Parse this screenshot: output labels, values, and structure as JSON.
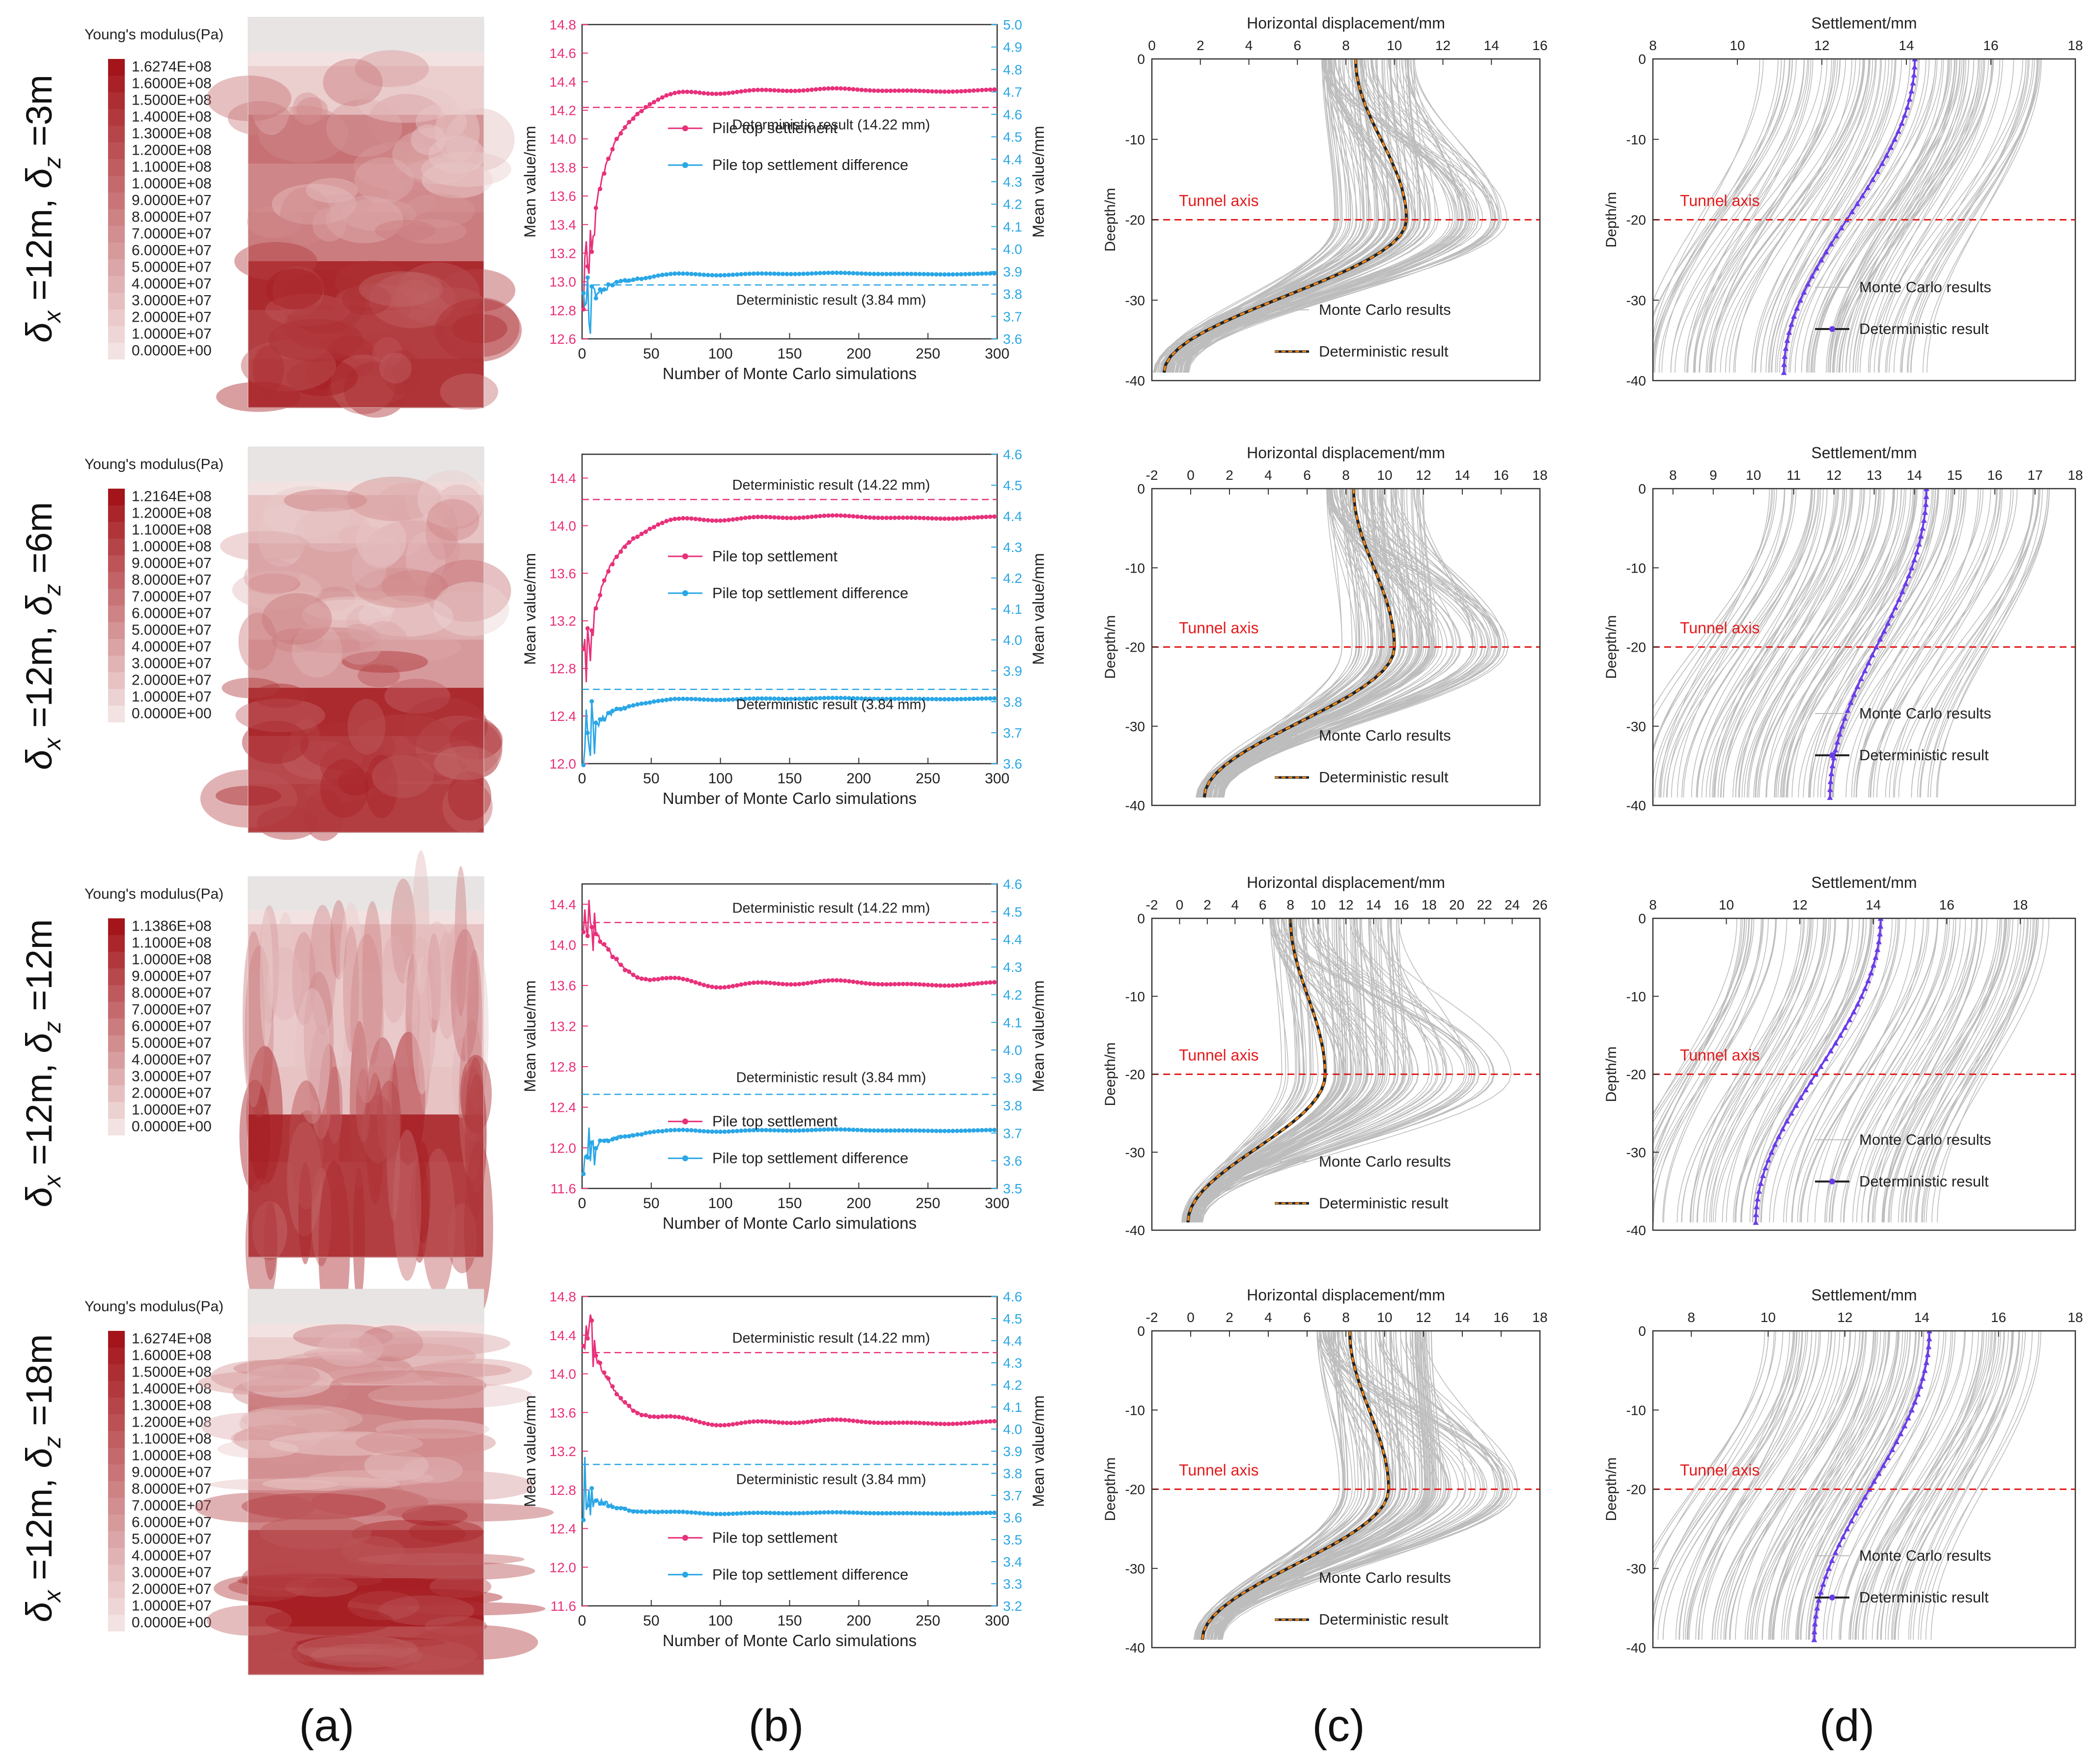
{
  "panel_letters": [
    "(a)",
    "(b)",
    "(c)",
    "(d)"
  ],
  "row_labels": [
    {
      "dx": "12m",
      "dz": "3m"
    },
    {
      "dx": "12m",
      "dz": "6m"
    },
    {
      "dx": "12m",
      "dz": "12m"
    },
    {
      "dx": "12m",
      "dz": "18m"
    }
  ],
  "label_template": {
    "delta": "δ",
    "sub_x": "x",
    "sub_z": "z",
    "eq": " =",
    "sep": ", "
  },
  "colors": {
    "pink": "#e8317a",
    "blue": "#2aa7e6",
    "red": "#e31a1c",
    "grey": "#bdbdbd",
    "orange": "#f28a1a",
    "black": "#222222",
    "purple": "#6a3de8",
    "field_dark": "#a3151a",
    "field_light": "#f3e2e2"
  },
  "chart_data": [
    {
      "type": "heatmap",
      "panel": "a",
      "row": 0,
      "title": "Young's modulus(Pa)",
      "legend": [
        "1.6274E+08",
        "1.6000E+08",
        "1.5000E+08",
        "1.4000E+08",
        "1.3000E+08",
        "1.2000E+08",
        "1.1000E+08",
        "1.0000E+08",
        "9.0000E+07",
        "8.0000E+07",
        "7.0000E+07",
        "6.0000E+07",
        "5.0000E+07",
        "4.0000E+07",
        "3.0000E+07",
        "2.0000E+07",
        "1.0000E+07",
        "0.0000E+00"
      ],
      "bands": [
        0.0,
        0.1,
        0.55,
        0.45,
        0.5,
        0.9,
        0.8,
        0.85
      ],
      "pattern": "blobs"
    },
    {
      "type": "line",
      "panel": "b",
      "row": 0,
      "xlabel": "Number of Monte Carlo simulations",
      "ylabel": "Mean value/mm",
      "y2label": "Mean value/mm",
      "xlim": [
        0,
        300
      ],
      "xticks": [
        "0",
        "50",
        "100",
        "150",
        "200",
        "250",
        "300"
      ],
      "ylim": [
        12.6,
        14.8
      ],
      "yticks": [
        "12.6",
        "12.8",
        "13.0",
        "13.2",
        "13.4",
        "13.6",
        "13.8",
        "14.0",
        "14.2",
        "14.4",
        "14.6",
        "14.8"
      ],
      "y2lim": [
        3.6,
        5.0
      ],
      "y2ticks": [
        "3.6",
        "3.7",
        "3.8",
        "3.9",
        "4.0",
        "4.1",
        "4.2",
        "4.3",
        "4.4",
        "4.5",
        "4.6",
        "4.7",
        "4.8",
        "4.9",
        "5.0"
      ],
      "det1": 14.22,
      "det1_label": "Deterministic result (14.22 mm)",
      "det2": 3.84,
      "det2_label": "Deterministic result (3.84 mm)",
      "series": [
        {
          "name": "Pile top settlement",
          "axis": "left",
          "final": 14.34,
          "start": 12.9,
          "wave": 0.03
        },
        {
          "name": "Pile top settlement difference",
          "axis": "right",
          "final": 3.89,
          "start": 3.7,
          "wave": 0.015
        }
      ],
      "legend": [
        "Pile top settlement",
        "Pile top settlement difference"
      ]
    },
    {
      "type": "line",
      "panel": "c",
      "row": 0,
      "xlabel": "Horizontal displacement/mm",
      "ylabel": "Deepth/m",
      "xlim": [
        0,
        16
      ],
      "xticks": [
        "0",
        "2",
        "4",
        "6",
        "8",
        "10",
        "12",
        "14",
        "16"
      ],
      "ylim": [
        -40,
        0
      ],
      "yticks": [
        "0",
        "-10",
        "-20",
        "-30",
        "-40"
      ],
      "tunnel_axis": -20,
      "tunnel_label": "Tunnel axis",
      "det": {
        "top": 8.4,
        "peak": 10.5,
        "bottom": 0.5
      },
      "mc_spread": {
        "top": [
          7.0,
          11.0
        ],
        "peak": [
          7.5,
          15.0
        ]
      },
      "legend": [
        "Monte Carlo results",
        "Deterministic result"
      ]
    },
    {
      "type": "line",
      "panel": "d",
      "row": 0,
      "xlabel": "Settlement/mm",
      "ylabel": "Depth/m",
      "xlim": [
        8,
        18
      ],
      "xticks": [
        "8",
        "10",
        "12",
        "14",
        "16",
        "18"
      ],
      "ylim": [
        -40,
        0
      ],
      "yticks": [
        "0",
        "-10",
        "-20",
        "-30",
        "-40"
      ],
      "tunnel_axis": -20,
      "tunnel_label": "Tunnel axis",
      "det": {
        "top": 14.2,
        "bottom": 11.1
      },
      "mc_range": [
        8.5,
        17.2
      ],
      "legend": [
        "Monte Carlo results",
        "Deterministic result"
      ]
    },
    {
      "type": "heatmap",
      "panel": "a",
      "row": 1,
      "title": "Young's modulus(Pa)",
      "legend": [
        "1.2164E+08",
        "1.2000E+08",
        "1.1000E+08",
        "1.0000E+08",
        "9.0000E+07",
        "8.0000E+07",
        "7.0000E+07",
        "6.0000E+07",
        "5.0000E+07",
        "4.0000E+07",
        "3.0000E+07",
        "2.0000E+07",
        "1.0000E+07",
        "0.0000E+00"
      ],
      "bands": [
        0.0,
        0.15,
        0.3,
        0.25,
        0.35,
        0.9,
        0.75,
        0.8
      ],
      "pattern": "blobs"
    },
    {
      "type": "line",
      "panel": "b",
      "row": 1,
      "xlabel": "Number of Monte Carlo simulations",
      "ylabel": "Mean value/mm",
      "y2label": "Mean value/mm",
      "xlim": [
        0,
        300
      ],
      "xticks": [
        "0",
        "50",
        "100",
        "150",
        "200",
        "250",
        "300"
      ],
      "ylim": [
        12.0,
        14.6
      ],
      "yticks": [
        "12.0",
        "12.4",
        "12.8",
        "13.2",
        "13.6",
        "14.0",
        "14.4"
      ],
      "y2lim": [
        3.6,
        4.6
      ],
      "y2ticks": [
        "3.6",
        "3.7",
        "3.8",
        "3.9",
        "4.0",
        "4.1",
        "4.2",
        "4.3",
        "4.4",
        "4.5",
        "4.6"
      ],
      "det1": 14.22,
      "det1_label": "Deterministic result (14.22 mm)",
      "det2": 3.84,
      "det2_label": "Deterministic result (3.84 mm)",
      "series": [
        {
          "name": "Pile top settlement",
          "axis": "left",
          "final": 14.07,
          "start": 12.7,
          "wave": 0.03
        },
        {
          "name": "Pile top settlement difference",
          "axis": "right",
          "final": 3.81,
          "start": 3.65,
          "wave": 0.012
        }
      ],
      "legend": [
        "Pile top settlement",
        "Pile top settlement difference"
      ]
    },
    {
      "type": "line",
      "panel": "c",
      "row": 1,
      "xlabel": "Horizontal displacement/mm",
      "ylabel": "Deepth/m",
      "xlim": [
        -2,
        18
      ],
      "xticks": [
        "-2",
        "0",
        "2",
        "4",
        "6",
        "8",
        "10",
        "12",
        "14",
        "16",
        "18"
      ],
      "ylim": [
        -40,
        0
      ],
      "yticks": [
        "0",
        "-10",
        "-20",
        "-30",
        "-40"
      ],
      "tunnel_axis": -20,
      "tunnel_label": "Tunnel axis",
      "det": {
        "top": 8.4,
        "peak": 10.5,
        "bottom": 0.7
      },
      "mc_spread": {
        "top": [
          7.0,
          12.0
        ],
        "peak": [
          7.5,
          16.5
        ]
      },
      "legend": [
        "Monte Carlo results",
        "Deterministic result"
      ]
    },
    {
      "type": "line",
      "panel": "d",
      "row": 1,
      "xlabel": "Settlement/mm",
      "ylabel": "Deepth/m",
      "xlim": [
        7.5,
        18
      ],
      "xticks": [
        "8",
        "9",
        "10",
        "11",
        "12",
        "13",
        "14",
        "15",
        "16",
        "17",
        "18"
      ],
      "ylim": [
        -40,
        0
      ],
      "yticks": [
        "0",
        "-10",
        "-20",
        "-30",
        "-40"
      ],
      "tunnel_axis": -20,
      "tunnel_label": "Tunnel axis",
      "det": {
        "top": 14.3,
        "bottom": 11.9
      },
      "mc_range": [
        8.3,
        17.5
      ],
      "legend": [
        "Monte Carlo results",
        "Deterministic result"
      ]
    },
    {
      "type": "heatmap",
      "panel": "a",
      "row": 2,
      "title": "Young's modulus(Pa)",
      "legend": [
        "1.1386E+08",
        "1.1000E+08",
        "1.0000E+08",
        "9.0000E+07",
        "8.0000E+07",
        "7.0000E+07",
        "6.0000E+07",
        "5.0000E+07",
        "4.0000E+07",
        "3.0000E+07",
        "2.0000E+07",
        "1.0000E+07",
        "0.0000E+00"
      ],
      "bands": [
        0.0,
        0.15,
        0.12,
        0.12,
        0.15,
        0.85,
        0.8,
        0.8
      ],
      "pattern": "vertical"
    },
    {
      "type": "line",
      "panel": "b",
      "row": 2,
      "xlabel": "Number of Monte Carlo simulations",
      "ylabel": "Mean value/mm",
      "y2label": "Mean value/mm",
      "xlim": [
        0,
        300
      ],
      "xticks": [
        "0",
        "50",
        "100",
        "150",
        "200",
        "250",
        "300"
      ],
      "ylim": [
        11.6,
        14.6
      ],
      "yticks": [
        "11.6",
        "12.0",
        "12.4",
        "12.8",
        "13.2",
        "13.6",
        "14.0",
        "14.4"
      ],
      "y2lim": [
        3.5,
        4.6
      ],
      "y2ticks": [
        "3.5",
        "3.6",
        "3.7",
        "3.8",
        "3.9",
        "4.0",
        "4.1",
        "4.2",
        "4.3",
        "4.4",
        "4.5",
        "4.6"
      ],
      "det1": 14.22,
      "det1_label": "Deterministic result (14.22 mm)",
      "det2": 3.84,
      "det2_label": "Deterministic result (3.84 mm)",
      "series": [
        {
          "name": "Pile top settlement",
          "axis": "left",
          "final": 13.62,
          "start": 14.4,
          "wave": 0.05
        },
        {
          "name": "Pile top settlement difference",
          "axis": "right",
          "final": 3.71,
          "start": 3.6,
          "wave": 0.015
        }
      ],
      "legend": [
        "Pile top settlement",
        "Pile top settlement difference"
      ]
    },
    {
      "type": "line",
      "panel": "c",
      "row": 2,
      "xlabel": "Horizontal displacement/mm",
      "ylabel": "Deepth/m",
      "xlim": [
        -2,
        26
      ],
      "xticks": [
        "-2",
        "0",
        "2",
        "4",
        "6",
        "8",
        "10",
        "12",
        "14",
        "16",
        "18",
        "20",
        "22",
        "24",
        "26"
      ],
      "ylim": [
        -40,
        0
      ],
      "yticks": [
        "0",
        "-10",
        "-20",
        "-30",
        "-40"
      ],
      "tunnel_axis": -20,
      "tunnel_label": "Tunnel axis",
      "det": {
        "top": 8.0,
        "peak": 10.5,
        "bottom": 0.6
      },
      "mc_spread": {
        "top": [
          6.5,
          16.0
        ],
        "peak": [
          7.0,
          24.0
        ]
      },
      "legend": [
        "Monte Carlo results",
        "Deterministic result"
      ]
    },
    {
      "type": "line",
      "panel": "d",
      "row": 2,
      "xlabel": "Settlement/mm",
      "ylabel": "Depth/m",
      "xlim": [
        8,
        19.5
      ],
      "xticks": [
        "8",
        "10",
        "12",
        "14",
        "16",
        "18"
      ],
      "ylim": [
        -40,
        0
      ],
      "yticks": [
        "0",
        "-10",
        "-20",
        "-30",
        "-40"
      ],
      "tunnel_axis": -20,
      "tunnel_label": "Tunnel axis",
      "det": {
        "top": 14.2,
        "bottom": 10.8
      },
      "mc_range": [
        8.2,
        18.8
      ],
      "legend": [
        "Monte Carlo results",
        "Deterministic result"
      ]
    },
    {
      "type": "heatmap",
      "panel": "a",
      "row": 3,
      "title": "Young's modulus(Pa)",
      "legend": [
        "1.6274E+08",
        "1.6000E+08",
        "1.5000E+08",
        "1.4000E+08",
        "1.3000E+08",
        "1.2000E+08",
        "1.1000E+08",
        "1.0000E+08",
        "9.0000E+07",
        "8.0000E+07",
        "7.0000E+07",
        "6.0000E+07",
        "5.0000E+07",
        "4.0000E+07",
        "3.0000E+07",
        "2.0000E+07",
        "1.0000E+07",
        "0.0000E+00"
      ],
      "bands": [
        0.0,
        0.1,
        0.5,
        0.4,
        0.45,
        0.75,
        0.95,
        0.75
      ],
      "pattern": "horizontal"
    },
    {
      "type": "line",
      "panel": "b",
      "row": 3,
      "xlabel": "Number of Monte Carlo simulations",
      "ylabel": "Mean value/mm",
      "y2label": "Mean value/mm",
      "xlim": [
        0,
        300
      ],
      "xticks": [
        "0",
        "50",
        "100",
        "150",
        "200",
        "250",
        "300"
      ],
      "ylim": [
        11.6,
        14.8
      ],
      "yticks": [
        "11.6",
        "12.0",
        "12.4",
        "12.8",
        "13.2",
        "13.6",
        "14.0",
        "14.4",
        "14.8"
      ],
      "y2lim": [
        3.2,
        4.6
      ],
      "y2ticks": [
        "3.2",
        "3.3",
        "3.4",
        "3.5",
        "3.6",
        "3.7",
        "3.8",
        "3.9",
        "4.0",
        "4.1",
        "4.2",
        "4.3",
        "4.4",
        "4.5",
        "4.6"
      ],
      "det1": 14.22,
      "det1_label": "Deterministic result (14.22 mm)",
      "det2": 3.84,
      "det2_label": "Deterministic result (3.84 mm)",
      "series": [
        {
          "name": "Pile top settlement",
          "axis": "left",
          "final": 13.5,
          "start": 14.6,
          "wave": 0.04
        },
        {
          "name": "Pile top settlement difference",
          "axis": "right",
          "final": 3.62,
          "start": 3.72,
          "wave": 0.012
        }
      ],
      "legend": [
        "Pile top settlement",
        "Pile top settlement difference"
      ]
    },
    {
      "type": "line",
      "panel": "c",
      "row": 3,
      "xlabel": "Horizontal displacement/mm",
      "ylabel": "Deepth/m",
      "xlim": [
        -2,
        18
      ],
      "xticks": [
        "-2",
        "0",
        "2",
        "4",
        "6",
        "8",
        "10",
        "12",
        "14",
        "16",
        "18"
      ],
      "ylim": [
        -40,
        0
      ],
      "yticks": [
        "0",
        "-10",
        "-20",
        "-30",
        "-40"
      ],
      "tunnel_axis": -20,
      "tunnel_label": "Tunnel axis",
      "det": {
        "top": 8.2,
        "peak": 10.2,
        "bottom": 0.6
      },
      "mc_spread": {
        "top": [
          6.5,
          12.5
        ],
        "peak": [
          7.0,
          17.0
        ]
      },
      "legend": [
        "Monte Carlo results",
        "Deterministic result"
      ]
    },
    {
      "type": "line",
      "panel": "d",
      "row": 3,
      "xlabel": "Settlement/mm",
      "ylabel": "Deepth/m",
      "xlim": [
        7,
        18
      ],
      "xticks": [
        "8",
        "10",
        "12",
        "14",
        "16",
        "18"
      ],
      "ylim": [
        -40,
        0
      ],
      "yticks": [
        "0",
        "-10",
        "-20",
        "-30",
        "-40"
      ],
      "tunnel_axis": -20,
      "tunnel_label": "Tunnel axis",
      "det": {
        "top": 14.2,
        "bottom": 11.2
      },
      "mc_range": [
        7.8,
        17.2
      ],
      "legend": [
        "Monte Carlo results",
        "Deterministic result"
      ]
    }
  ]
}
